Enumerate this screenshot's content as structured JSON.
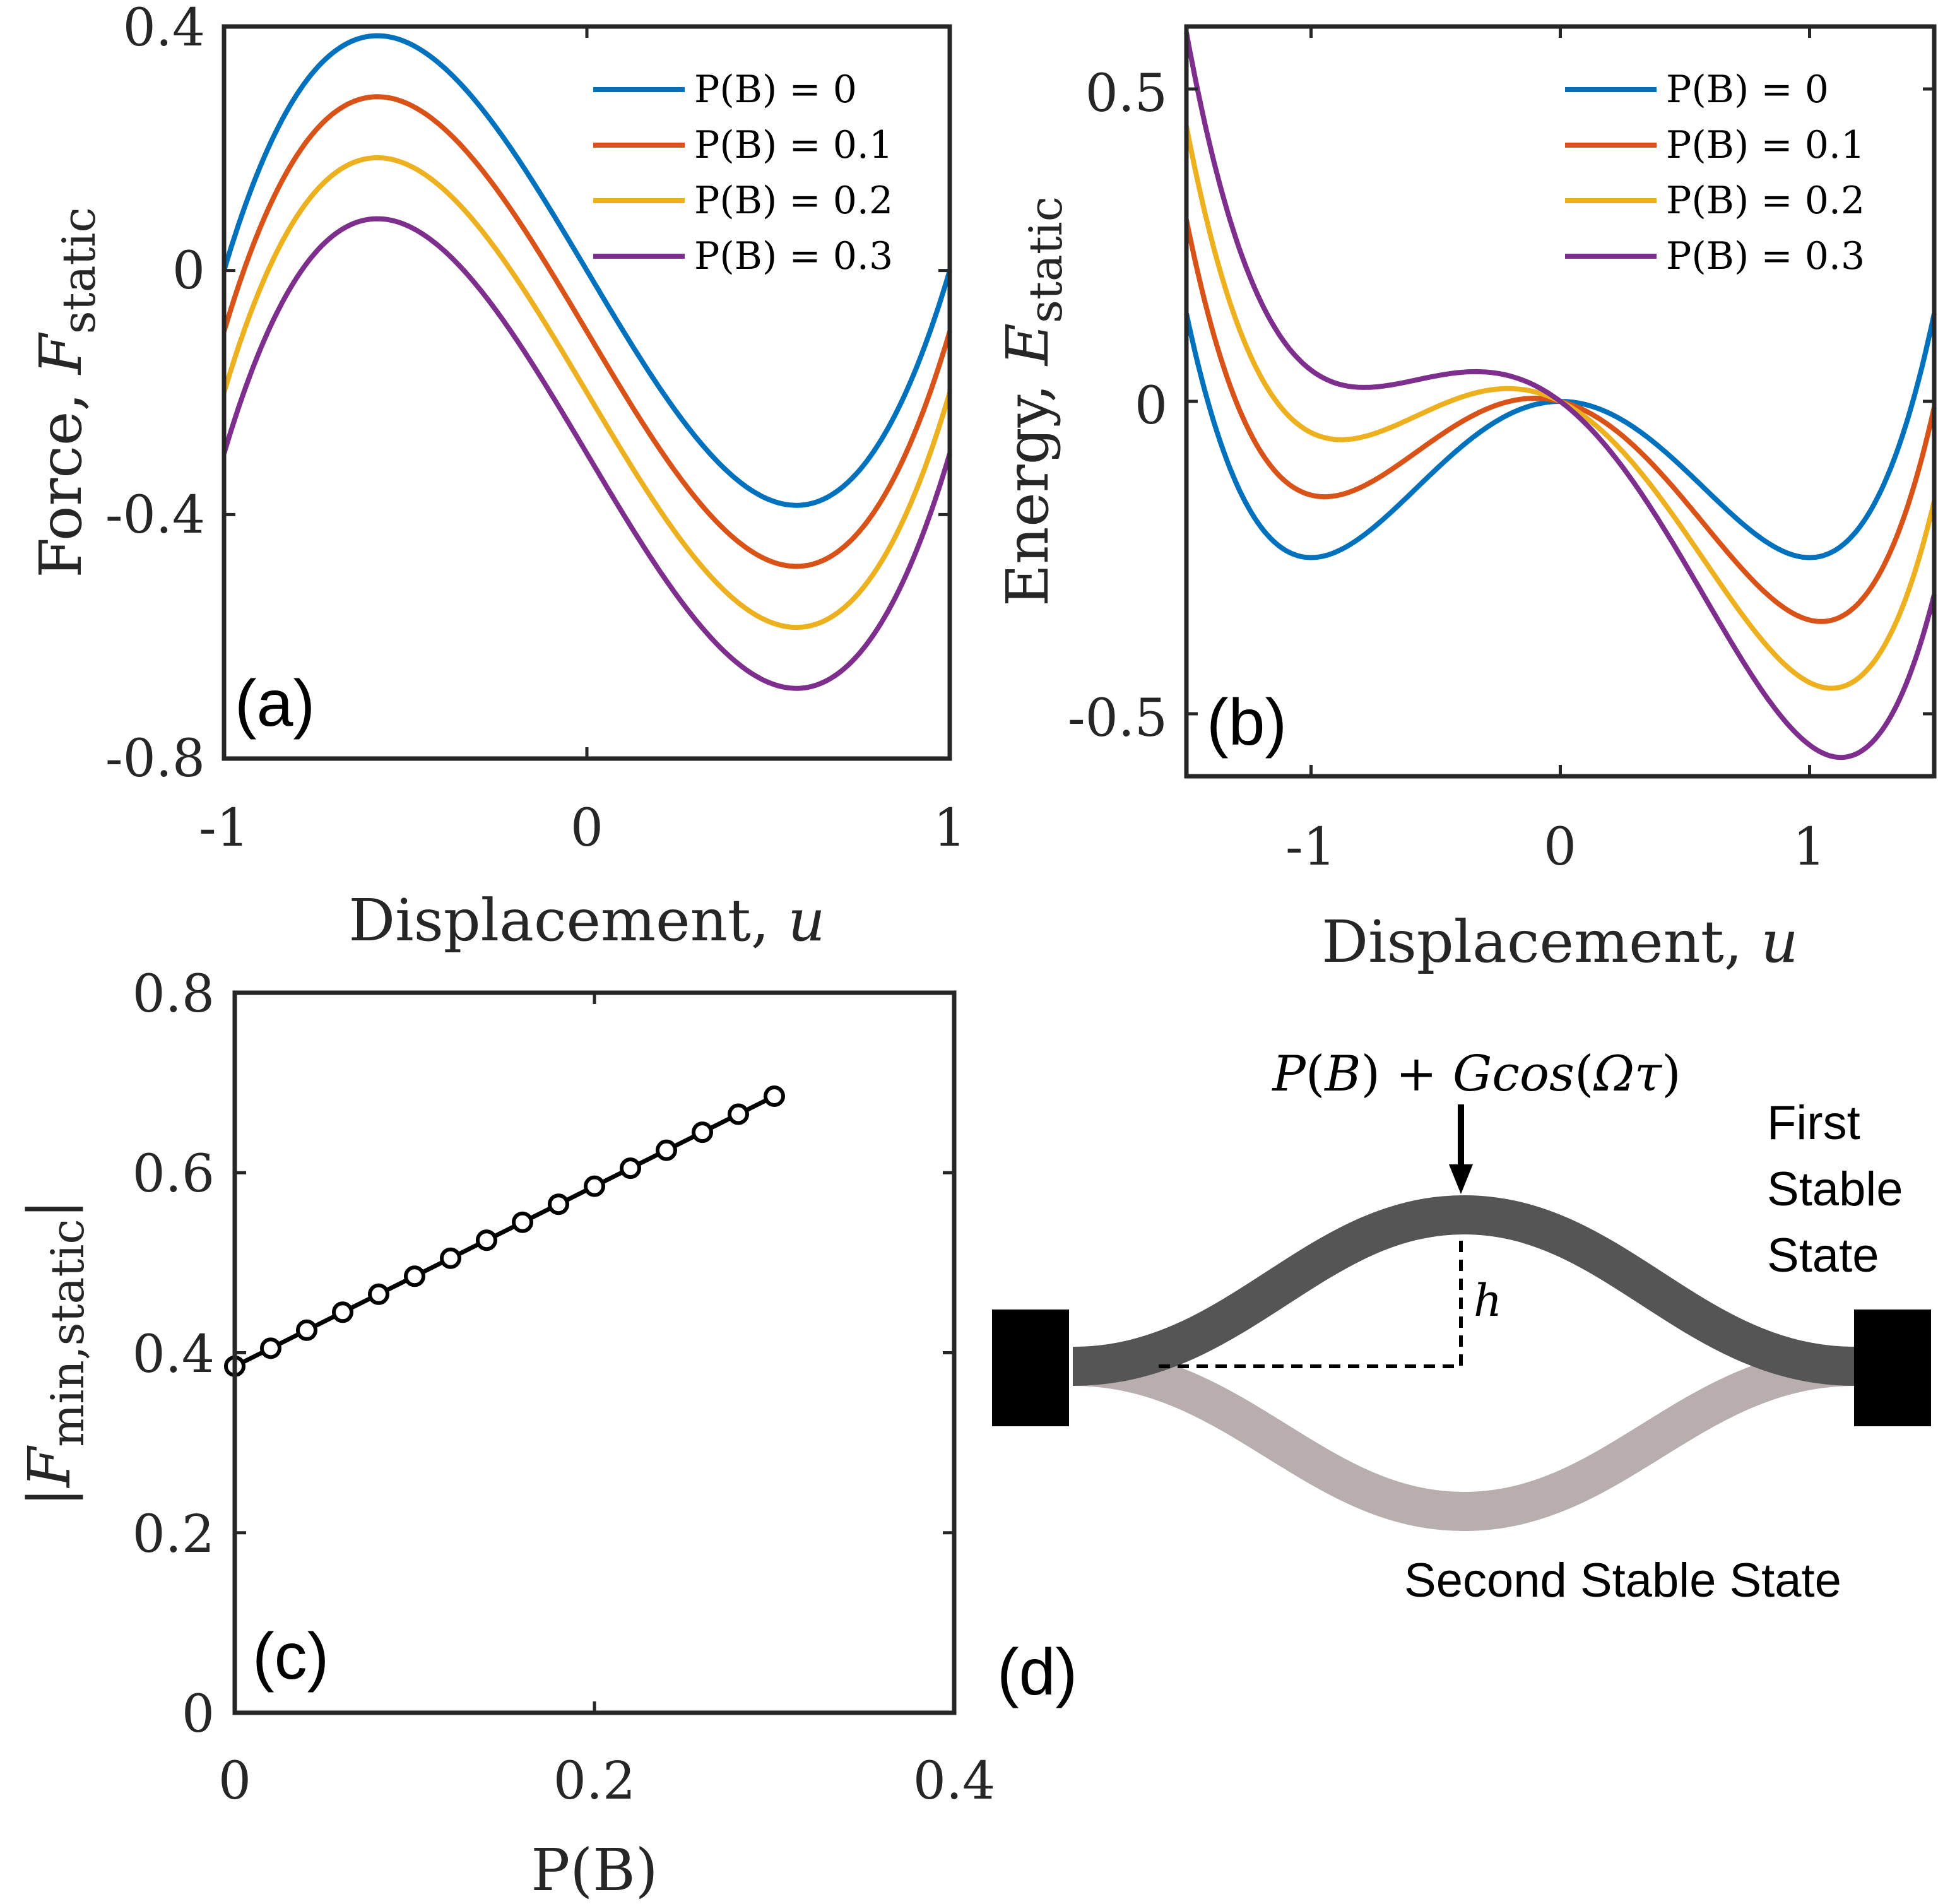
{
  "colors": {
    "axis": "#262626",
    "series": [
      "#0072bd",
      "#d95319",
      "#edb120",
      "#7e2f8e"
    ],
    "beam_first": "#555555",
    "beam_second": "#b8aeae"
  },
  "chart_data": [
    {
      "panel": "(a)",
      "type": "line",
      "xlabel": "Displacement, u",
      "ylabel": "Force, F_static",
      "ylabel_main": "Force, ",
      "ylabel_var": "F",
      "ylabel_sub": "static",
      "xlim": [
        -1,
        1
      ],
      "ylim": [
        -0.8,
        0.4
      ],
      "xticks": [
        -1,
        0,
        1
      ],
      "xtick_labels": [
        "-1",
        "0",
        "1"
      ],
      "yticks": [
        -0.8,
        -0.4,
        0,
        0.4
      ],
      "ytick_labels": [
        "-0.8",
        "-0.4",
        "0",
        "0.4"
      ],
      "legend_location": "top-right",
      "model": "F(u) = u^3 - u - P(B)",
      "series": [
        {
          "name": "P(B) = 0",
          "label": "P(B) = 0",
          "P": 0
        },
        {
          "name": "P(B) = 0.1",
          "label": "P(B) = 0.1",
          "P": 0.1
        },
        {
          "name": "P(B) = 0.2",
          "label": "P(B) = 0.2",
          "P": 0.2
        },
        {
          "name": "P(B) = 0.3",
          "label": "P(B) = 0.3",
          "P": 0.3
        }
      ]
    },
    {
      "panel": "(b)",
      "type": "line",
      "xlabel": "Displacement, u",
      "ylabel": "Energy, E_static",
      "ylabel_main": "Energy, ",
      "ylabel_var": "E",
      "ylabel_sub": "static",
      "xlim": [
        -1.5,
        1.5
      ],
      "ylim": [
        -0.6,
        0.6
      ],
      "xticks": [
        -1,
        0,
        1
      ],
      "xtick_labels": [
        "-1",
        "0",
        "1"
      ],
      "yticks": [
        -0.5,
        0,
        0.5
      ],
      "ytick_labels": [
        "-0.5",
        "0",
        "0.5"
      ],
      "legend_location": "top-right",
      "model": "E(u) = u^4/4 - u^2/2 - P(B) u",
      "series": [
        {
          "name": "P(B) = 0",
          "label": "P(B) = 0",
          "P": 0
        },
        {
          "name": "P(B) = 0.1",
          "label": "P(B) = 0.1",
          "P": 0.1
        },
        {
          "name": "P(B) = 0.2",
          "label": "P(B) = 0.2",
          "P": 0.2
        },
        {
          "name": "P(B) = 0.3",
          "label": "P(B) = 0.3",
          "P": 0.3
        }
      ]
    },
    {
      "panel": "(c)",
      "type": "line",
      "xlabel": "P(B)",
      "ylabel": "|F_min,static|",
      "ylabel_var": "F",
      "ylabel_sub": "min,static",
      "xlim": [
        0,
        0.4
      ],
      "ylim": [
        0,
        0.8
      ],
      "xticks": [
        0,
        0.2,
        0.4
      ],
      "xtick_labels": [
        "0",
        "0.2",
        "0.4"
      ],
      "yticks": [
        0,
        0.2,
        0.4,
        0.6,
        0.8
      ],
      "ytick_labels": [
        "0",
        "0.2",
        "0.4",
        "0.6",
        "0.8"
      ],
      "marker": "circle",
      "x": [
        0,
        0.02,
        0.04,
        0.06,
        0.08,
        0.1,
        0.12,
        0.14,
        0.16,
        0.18,
        0.2,
        0.22,
        0.24,
        0.26,
        0.28,
        0.3
      ],
      "y": [
        0.385,
        0.405,
        0.425,
        0.445,
        0.465,
        0.485,
        0.505,
        0.525,
        0.545,
        0.565,
        0.585,
        0.605,
        0.625,
        0.645,
        0.665,
        0.685
      ]
    }
  ],
  "diagram": {
    "panel": "(d)",
    "force_label_lead": "P",
    "force_label_open1": "(",
    "force_label_B": "B",
    "force_label_close1": ")",
    "force_label_plus": " + ",
    "force_label_G": "Gcos",
    "force_label_open2": "(",
    "force_label_omega": "Ωτ",
    "force_label_close2": ")",
    "height_label": "h",
    "first_state": [
      "First",
      "Stable",
      "State"
    ],
    "second_state": "Second Stable State"
  }
}
